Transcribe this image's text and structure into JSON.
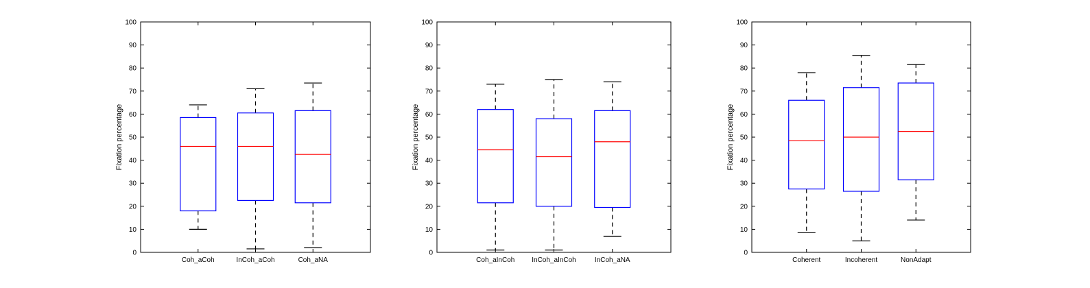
{
  "chart_data": [
    {
      "type": "box",
      "ylabel": "Fixation percentage",
      "ylim": [
        0,
        100
      ],
      "yticks": [
        "0",
        "10",
        "20",
        "30",
        "40",
        "50",
        "60",
        "70",
        "80",
        "90",
        "100"
      ],
      "categories": [
        "Coh_aCoh",
        "InCoh_aCoh",
        "Coh_aNA"
      ],
      "boxes": [
        {
          "min": 10,
          "q1": 18,
          "median": 46,
          "q3": 58.5,
          "max": 64
        },
        {
          "min": 1.5,
          "q1": 22.5,
          "median": 46,
          "q3": 60.5,
          "max": 71
        },
        {
          "min": 2,
          "q1": 21.5,
          "median": 42.5,
          "q3": 61.5,
          "max": 73.5
        }
      ]
    },
    {
      "type": "box",
      "ylabel": "Fixation percentage",
      "ylim": [
        0,
        100
      ],
      "yticks": [
        "0",
        "10",
        "20",
        "30",
        "40",
        "50",
        "60",
        "70",
        "80",
        "90",
        "100"
      ],
      "categories": [
        "Coh_aInCoh",
        "InCoh_aInCoh",
        "InCoh_aNA"
      ],
      "boxes": [
        {
          "min": 1,
          "q1": 21.5,
          "median": 44.5,
          "q3": 62,
          "max": 73
        },
        {
          "min": 1,
          "q1": 20,
          "median": 41.5,
          "q3": 58,
          "max": 75
        },
        {
          "min": 7,
          "q1": 19.5,
          "median": 48,
          "q3": 61.5,
          "max": 74
        }
      ]
    },
    {
      "type": "box",
      "ylabel": "Fixation percentage",
      "ylim": [
        0,
        100
      ],
      "yticks": [
        "0",
        "10",
        "20",
        "30",
        "40",
        "50",
        "60",
        "70",
        "80",
        "90",
        "100"
      ],
      "categories": [
        "Coherent",
        "Incoherent",
        "NonAdapt"
      ],
      "boxes": [
        {
          "min": 8.5,
          "q1": 27.5,
          "median": 48.5,
          "q3": 66,
          "max": 78
        },
        {
          "min": 5,
          "q1": 26.5,
          "median": 50,
          "q3": 71.5,
          "max": 85.5
        },
        {
          "min": 14,
          "q1": 31.5,
          "median": 52.5,
          "q3": 73.5,
          "max": 81.5
        }
      ]
    }
  ]
}
